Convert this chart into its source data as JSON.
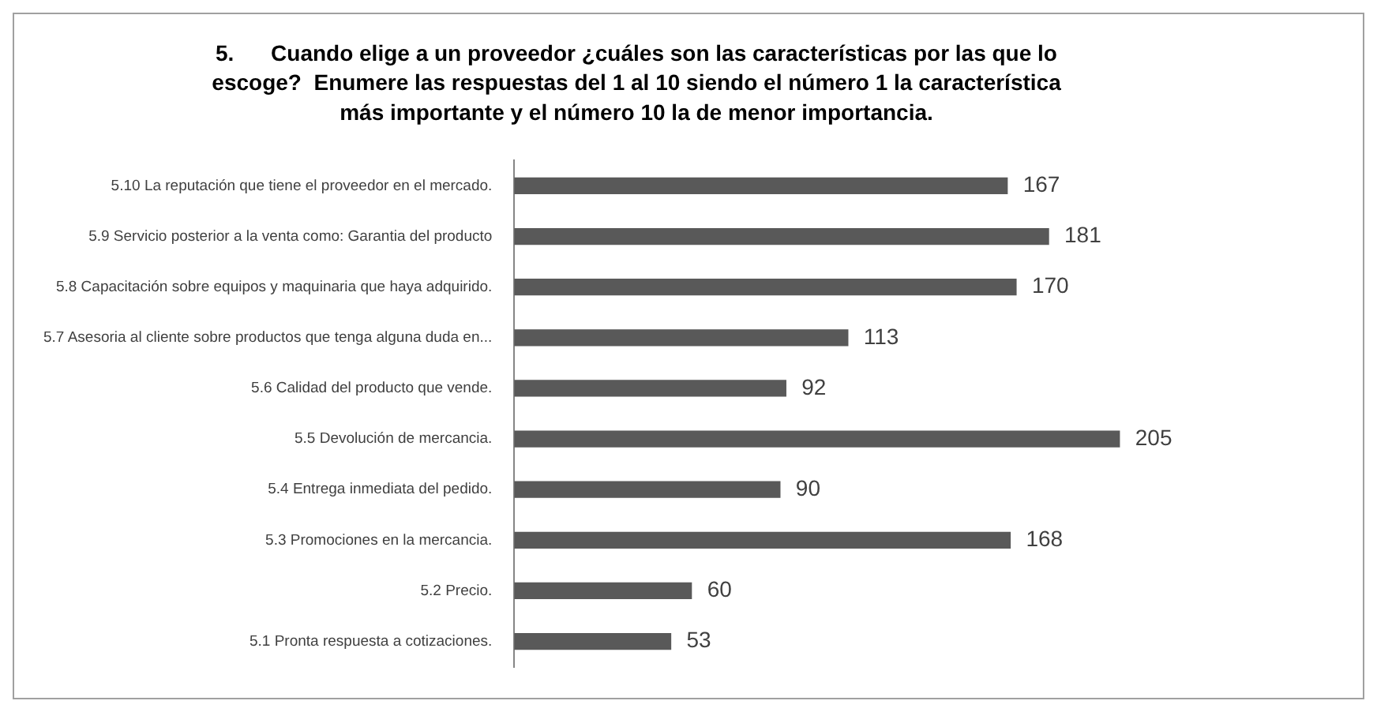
{
  "chart_data": {
    "type": "bar",
    "orientation": "horizontal",
    "title": "5.      Cuando elige a un proveedor ¿cuáles son las características por las que lo\nescoge?  Enumere las respuestas del 1 al 10 siendo el número 1 la característica\nmás importante y el número 10 la de menor importancia.",
    "categories": [
      "5.10 La reputación que tiene el proveedor en el mercado.",
      "5.9 Servicio posterior a la venta como: Garantia del producto",
      "5.8 Capacitación sobre equipos y maquinaria que haya adquirido.",
      "5.7 Asesoria al cliente sobre productos que tenga alguna duda en...",
      "5.6 Calidad del producto que vende.",
      "5.5 Devolución de mercancia.",
      "5.4 Entrega inmediata del pedido.",
      "5.3 Promociones en la mercancia.",
      "5.2 Precio.",
      "5.1 Pronta respuesta a cotizaciones."
    ],
    "values": [
      167,
      181,
      170,
      113,
      92,
      205,
      90,
      168,
      60,
      53
    ],
    "color": "#595959",
    "tick_labels": "y",
    "data_labels": true,
    "grid": false,
    "legend": false
  }
}
